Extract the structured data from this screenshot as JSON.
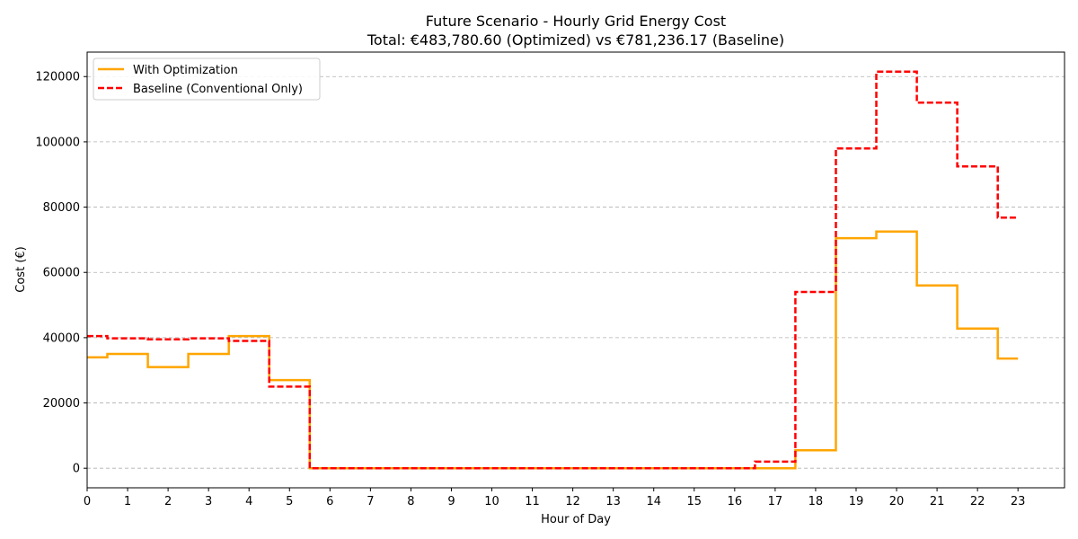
{
  "chart_data": {
    "type": "line",
    "step": "mid",
    "title": "Future Scenario - Hourly Grid Energy Cost",
    "subtitle": "Total: €483,780.60 (Optimized) vs €781,236.17 (Baseline)",
    "xlabel": "Hour of Day",
    "ylabel": "Cost (€)",
    "xlim": [
      0,
      24.15
    ],
    "ylim": [
      -6000,
      127500
    ],
    "x_ticks": [
      0,
      1,
      2,
      3,
      4,
      5,
      6,
      7,
      8,
      9,
      10,
      11,
      12,
      13,
      14,
      15,
      16,
      17,
      18,
      19,
      20,
      21,
      22,
      23
    ],
    "y_ticks": [
      0,
      20000,
      40000,
      60000,
      80000,
      100000,
      120000
    ],
    "grid": "horizontal dashed",
    "legend_position": "top-left",
    "x": [
      0,
      1,
      2,
      3,
      4,
      5,
      6,
      7,
      8,
      9,
      10,
      11,
      12,
      13,
      14,
      15,
      16,
      17,
      18,
      19,
      20,
      21,
      22,
      23
    ],
    "series": [
      {
        "name": "With Optimization",
        "color": "#FFA500",
        "linestyle": "solid",
        "values": [
          34000,
          35000,
          31000,
          35000,
          40500,
          27000,
          0,
          0,
          0,
          0,
          0,
          0,
          0,
          0,
          0,
          0,
          0,
          0,
          5500,
          70500,
          72500,
          56000,
          42800,
          33600
        ]
      },
      {
        "name": "Baseline (Conventional Only)",
        "color": "#FF0000",
        "linestyle": "dashed",
        "values": [
          40500,
          39800,
          39500,
          39800,
          39000,
          25000,
          0,
          0,
          0,
          0,
          0,
          0,
          0,
          0,
          0,
          0,
          0,
          2000,
          54000,
          98000,
          121500,
          112000,
          92500,
          76800
        ]
      }
    ]
  }
}
